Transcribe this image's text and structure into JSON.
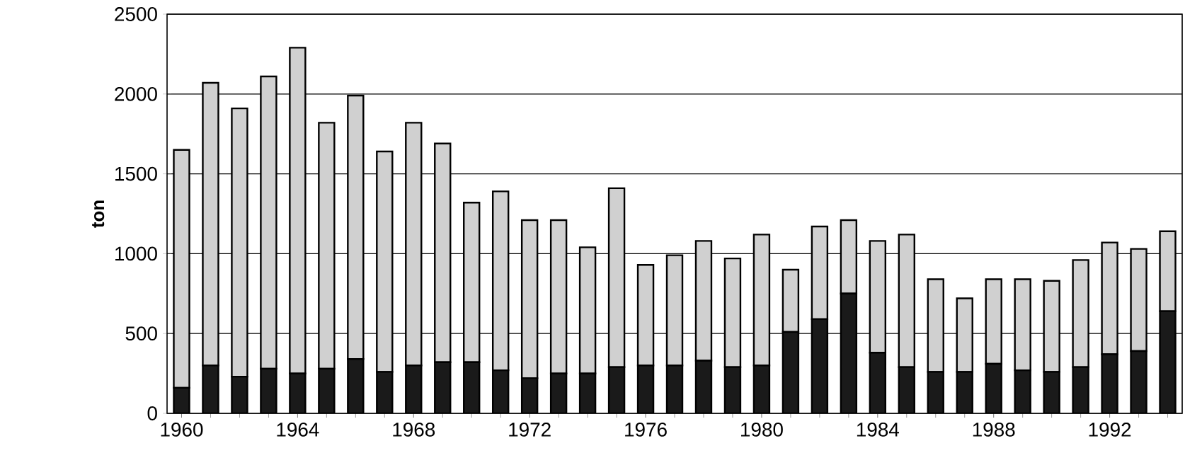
{
  "chart_data": {
    "type": "bar",
    "stacked": true,
    "ylabel": "ton",
    "categories": [
      "1960",
      null,
      null,
      null,
      "1964",
      null,
      null,
      null,
      "1968",
      null,
      null,
      null,
      "1972",
      null,
      null,
      null,
      "1976",
      null,
      null,
      null,
      "1980",
      null,
      null,
      null,
      "1984",
      null,
      null,
      null,
      "1988",
      null,
      null,
      null,
      "1992",
      null,
      null
    ],
    "series": [
      {
        "color": "#1a1a1a",
        "values": [
          160,
          300,
          230,
          280,
          250,
          280,
          340,
          260,
          300,
          320,
          320,
          270,
          220,
          250,
          250,
          290,
          300,
          300,
          330,
          290,
          300,
          510,
          590,
          750,
          380,
          290,
          260,
          260,
          310,
          270,
          260,
          290,
          370,
          390,
          640
        ]
      },
      {
        "color": "#d0d0d0",
        "values": [
          1490,
          1770,
          1680,
          1830,
          2040,
          1540,
          1650,
          1380,
          1520,
          1370,
          1000,
          1120,
          990,
          960,
          790,
          1120,
          630,
          690,
          750,
          680,
          820,
          390,
          580,
          460,
          700,
          830,
          580,
          460,
          530,
          570,
          570,
          670,
          700,
          640,
          500
        ]
      }
    ],
    "ylim": [
      0,
      2500
    ],
    "yticks": [
      0,
      500,
      1000,
      1500,
      2000,
      2500
    ],
    "grid": "y"
  }
}
